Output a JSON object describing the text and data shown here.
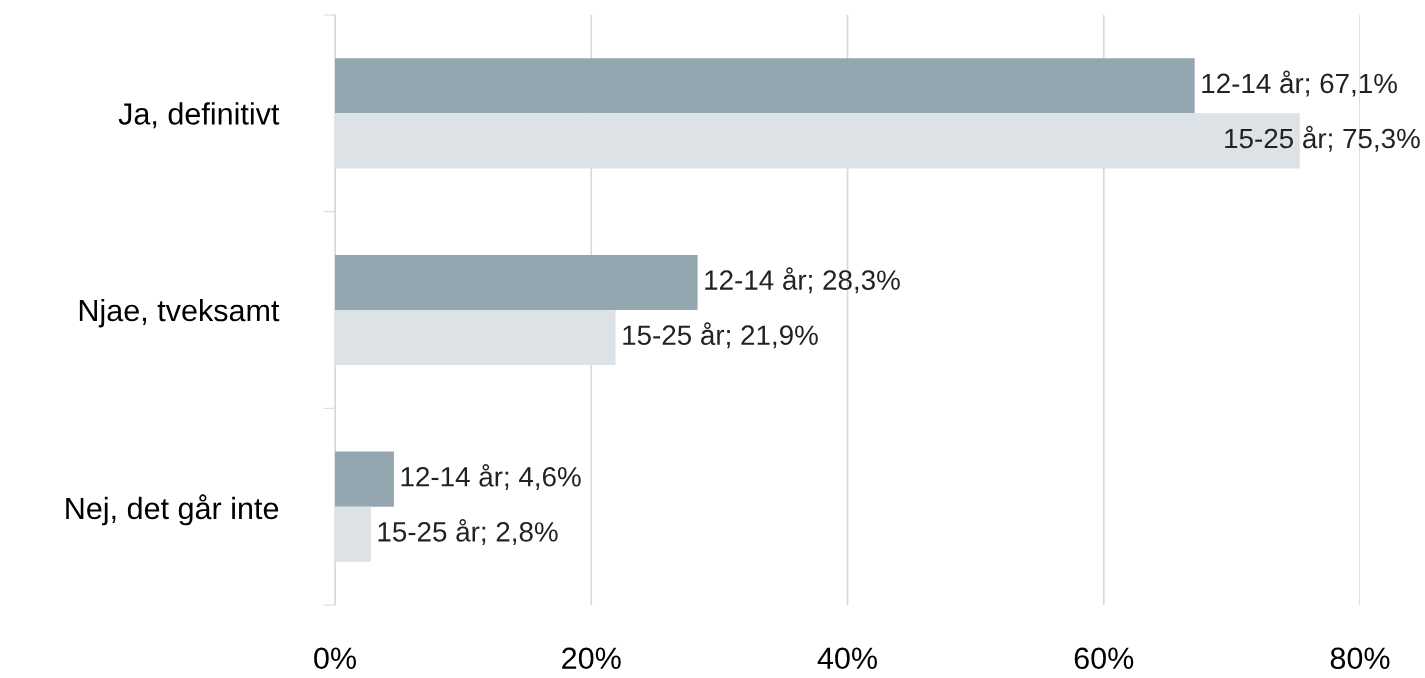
{
  "chart_data": {
    "type": "bar",
    "orientation": "horizontal",
    "categories": [
      "Ja, definitivt",
      "Njae, tveksamt",
      "Nej, det går inte"
    ],
    "series": [
      {
        "color": "#94a7b1",
        "values": [
          67.1,
          28.3,
          4.6
        ],
        "value_labels": [
          "12-14 år; 67,1%",
          "12-14 år; 28,3%",
          "12-14 år; 4,6%"
        ]
      },
      {
        "color": "#dce2e5",
        "values": [
          75.3,
          21.9,
          2.8
        ],
        "value_labels": [
          "15-25 år; 75,3%",
          "15-25 år; 21,9%",
          "15-25 år; 2,8%"
        ]
      }
    ],
    "xlim": [
      0,
      80
    ],
    "xticks": [
      {
        "value": 0,
        "label": "0%"
      },
      {
        "value": 20,
        "label": "20%"
      },
      {
        "value": 40,
        "label": "40%"
      },
      {
        "value": 60,
        "label": "60%"
      },
      {
        "value": 80,
        "label": "80%"
      }
    ],
    "grid": "x"
  }
}
